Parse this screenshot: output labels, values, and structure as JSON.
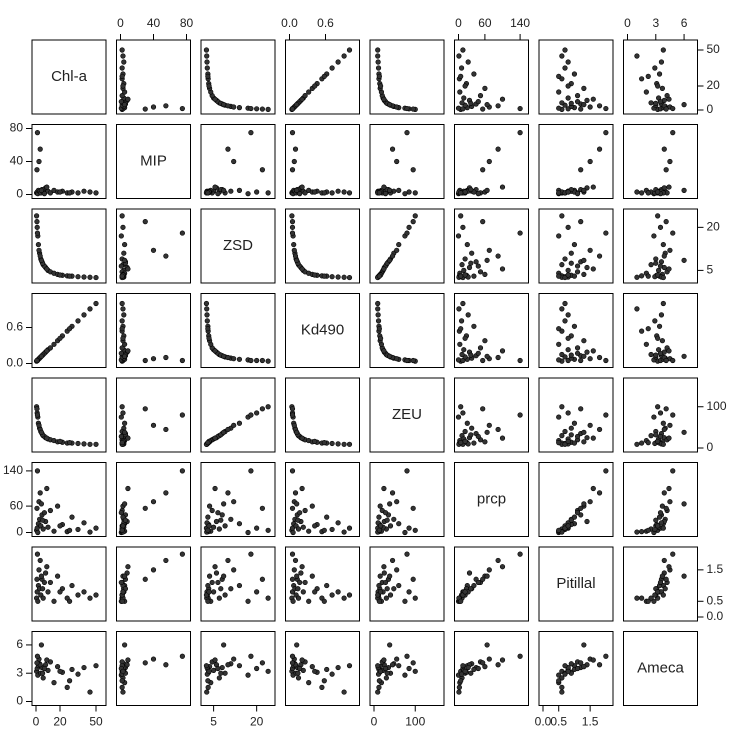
{
  "chart_data": {
    "type": "pairs",
    "variables": [
      {
        "name": "Chl-a",
        "lim": [
          0,
          55
        ],
        "ticks": [
          0,
          20,
          50
        ],
        "values": [
          0.5,
          1,
          1.5,
          2,
          3,
          4,
          5,
          6,
          8,
          10,
          12,
          15,
          18,
          22,
          26,
          30,
          35,
          40,
          45,
          50,
          2.5,
          3.5,
          1.2,
          7,
          0.8,
          5.5,
          9,
          20,
          28,
          4.5
        ]
      },
      {
        "name": "MIP",
        "lim": [
          0,
          80
        ],
        "ticks": [
          0,
          40,
          80
        ],
        "values": [
          2,
          3,
          1,
          5,
          4,
          2,
          6,
          3,
          8,
          4,
          2,
          5,
          3,
          4,
          2,
          3,
          2,
          4,
          3,
          2,
          40,
          55,
          75,
          1,
          30,
          6,
          9,
          3,
          2,
          5
        ]
      },
      {
        "name": "ZSD",
        "lim": [
          2,
          25
        ],
        "ticks": [
          5,
          20
        ],
        "values": [
          24,
          20,
          17,
          14,
          11,
          9,
          8,
          7,
          6,
          5,
          4.5,
          4,
          3.6,
          3.3,
          3.1,
          3,
          2.8,
          2.7,
          2.6,
          2.5,
          12,
          10,
          18,
          6.5,
          22,
          7.5,
          5.5,
          3.4,
          3,
          8.5
        ]
      },
      {
        "name": "Kd490",
        "lim": [
          0,
          1.1
        ],
        "ticks": [
          {
            "value": 0,
            "label": "0.0"
          },
          0.6
        ],
        "values": [
          0.04,
          0.05,
          0.06,
          0.07,
          0.09,
          0.11,
          0.13,
          0.15,
          0.19,
          0.23,
          0.26,
          0.32,
          0.38,
          0.46,
          0.54,
          0.62,
          0.71,
          0.81,
          0.91,
          1.0,
          0.08,
          0.1,
          0.05,
          0.17,
          0.05,
          0.14,
          0.21,
          0.42,
          0.58,
          0.12
        ]
      },
      {
        "name": "ZEU",
        "lim": [
          0,
          160
        ],
        "ticks": [
          0,
          100
        ],
        "values": [
          100,
          85,
          75,
          60,
          48,
          40,
          35,
          30,
          25,
          22,
          20,
          18,
          15,
          14,
          12,
          12,
          11,
          10,
          9,
          9,
          55,
          45,
          80,
          28,
          95,
          32,
          24,
          16,
          13,
          38
        ]
      },
      {
        "name": "prcp",
        "lim": [
          0,
          150
        ],
        "ticks": [
          0,
          60,
          140
        ],
        "values": [
          5,
          10,
          0,
          20,
          30,
          15,
          40,
          8,
          25,
          12,
          50,
          3,
          60,
          18,
          2,
          35,
          7,
          22,
          1,
          10,
          70,
          90,
          140,
          45,
          55,
          28,
          100,
          15,
          5,
          65
        ]
      },
      {
        "name": "Pitillal",
        "lim": [
          0,
          2.1
        ],
        "ticks": [
          {
            "value": 0,
            "label": "0.0"
          },
          0.5,
          1.5
        ],
        "values": [
          0.6,
          0.8,
          0.5,
          1.0,
          0.9,
          0.7,
          1.2,
          0.6,
          1.4,
          0.8,
          1.1,
          0.5,
          1.3,
          0.9,
          0.6,
          1.0,
          0.7,
          0.8,
          0.6,
          0.7,
          1.5,
          1.8,
          2.0,
          1.1,
          1.2,
          0.9,
          1.6,
          0.8,
          0.5,
          1.3
        ]
      },
      {
        "name": "Ameca",
        "lim": [
          0,
          7
        ],
        "ticks": [
          0,
          3,
          6
        ],
        "values": [
          3.2,
          3.5,
          2.8,
          3.8,
          4.0,
          3.0,
          3.6,
          2.5,
          3.9,
          3.3,
          4.2,
          2.0,
          3.7,
          3.1,
          1.5,
          3.4,
          2.9,
          3.6,
          1.0,
          3.8,
          4.5,
          3.9,
          4.8,
          3.5,
          4.1,
          3.0,
          4.4,
          3.2,
          2.2,
          6.0
        ]
      }
    ]
  }
}
